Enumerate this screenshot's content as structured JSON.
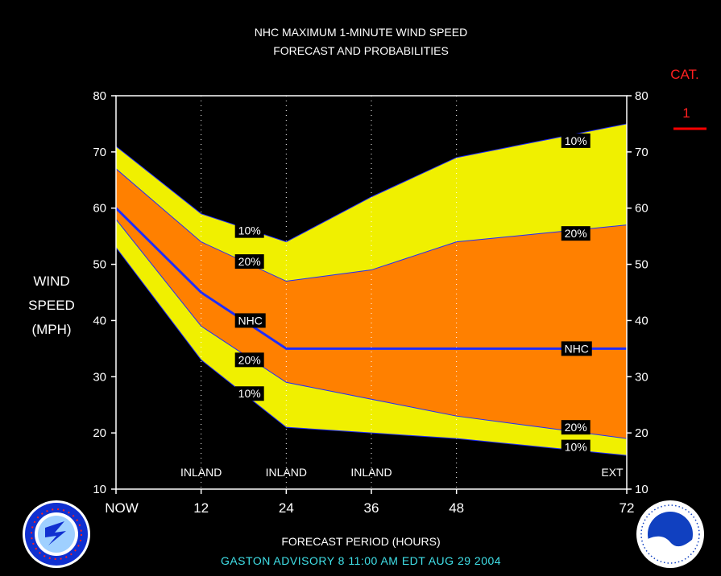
{
  "title": [
    "NHC MAXIMUM 1-MINUTE WIND SPEED",
    "FORECAST AND PROBABILITIES"
  ],
  "ylabel": [
    "WIND",
    "SPEED",
    "(MPH)"
  ],
  "xlabel": "FORECAST PERIOD (HOURS)",
  "advisory": "GASTON   ADVISORY  8  11:00  AM  EDT  AUG 29  2004",
  "category": {
    "label": "CAT.",
    "value": "1",
    "color": "#ff0000"
  },
  "colors": {
    "band10": "#f0f000",
    "band20": "#ff8000",
    "nhc_line": "#1e2cff",
    "grid": "#ffffff",
    "background": "#000000"
  },
  "chart_data": {
    "type": "area",
    "x": [
      0,
      12,
      24,
      36,
      48,
      60,
      72
    ],
    "xlim": [
      0,
      72
    ],
    "ylim": [
      10,
      80
    ],
    "yticks": [
      10,
      20,
      30,
      40,
      50,
      60,
      70,
      80
    ],
    "xtick_labels": [
      {
        "x": 0,
        "label": "NOW"
      },
      {
        "x": 12,
        "label": "12"
      },
      {
        "x": 24,
        "label": "24"
      },
      {
        "x": 36,
        "label": "36"
      },
      {
        "x": 48,
        "label": "48"
      },
      {
        "x": 72,
        "label": "72"
      }
    ],
    "gridlines_x": [
      12,
      24,
      36,
      48
    ],
    "series": [
      {
        "name": "10%",
        "kind": "upper10",
        "values": [
          71,
          59,
          54,
          62,
          69,
          72,
          75
        ]
      },
      {
        "name": "20%",
        "kind": "upper20",
        "values": [
          67,
          54,
          47,
          49,
          54,
          55.5,
          57
        ]
      },
      {
        "name": "NHC",
        "kind": "nhc",
        "values": [
          60,
          45,
          35,
          35,
          35,
          35,
          35
        ]
      },
      {
        "name": "20%",
        "kind": "lower20",
        "values": [
          58,
          39,
          29,
          26,
          23,
          21,
          19
        ]
      },
      {
        "name": "10%",
        "kind": "lower10",
        "values": [
          53,
          33,
          21,
          20,
          19,
          17.5,
          16
        ]
      }
    ],
    "annotations": [
      {
        "text": "10%",
        "x": 17,
        "y": 56
      },
      {
        "text": "20%",
        "x": 17,
        "y": 50.5
      },
      {
        "text": "NHC",
        "x": 17,
        "y": 40
      },
      {
        "text": "20%",
        "x": 17,
        "y": 33
      },
      {
        "text": "10%",
        "x": 17,
        "y": 27
      },
      {
        "text": "10%",
        "x": 63,
        "y": 72
      },
      {
        "text": "20%",
        "x": 63,
        "y": 55.5
      },
      {
        "text": "NHC",
        "x": 63,
        "y": 35
      },
      {
        "text": "20%",
        "x": 63,
        "y": 21
      },
      {
        "text": "10%",
        "x": 63,
        "y": 17.5
      }
    ],
    "region_labels": [
      {
        "text": "INLAND",
        "x": 12
      },
      {
        "text": "INLAND",
        "x": 24
      },
      {
        "text": "INLAND",
        "x": 36
      },
      {
        "text": "EXT",
        "x": 72
      }
    ]
  },
  "logos": {
    "left": "nws-logo",
    "right": "noaa-logo"
  }
}
